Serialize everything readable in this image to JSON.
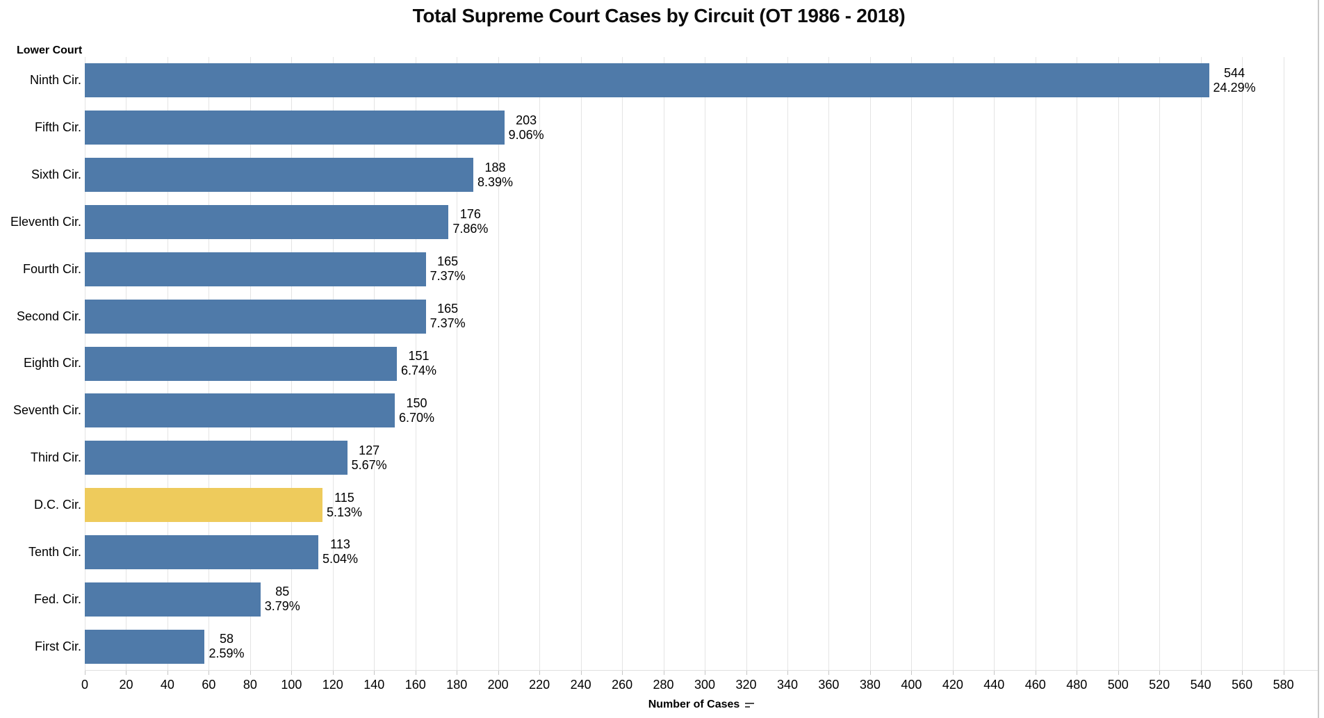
{
  "title": "Total Supreme Court Cases by Circuit (OT 1986 - 2018)",
  "row_header": "Lower Court",
  "axis": {
    "label": "Number of Cases",
    "min": 0,
    "max": 580,
    "tick_step": 20
  },
  "colors": {
    "bar": "#4f7aa9",
    "highlight": "#eecb5c",
    "gridline": "#e4e4e4",
    "axis_line": "#e0e0e0",
    "tick": "#c4c4c4",
    "border": "#c9c9c9",
    "text": "#000000"
  },
  "chart_data": {
    "type": "bar",
    "orientation": "horizontal",
    "title": "Total Supreme Court Cases by Circuit (OT 1986 - 2018)",
    "xlabel": "Number of Cases",
    "ylabel": "Lower Court",
    "xlim": [
      0,
      580
    ],
    "grid": true,
    "legend": false,
    "categories": [
      "Ninth Cir.",
      "Fifth Cir.",
      "Sixth Cir.",
      "Eleventh Cir.",
      "Fourth Cir.",
      "Second Cir.",
      "Eighth Cir.",
      "Seventh Cir.",
      "Third Cir.",
      "D.C. Cir.",
      "Tenth Cir.",
      "Fed. Cir.",
      "First Cir."
    ],
    "values": [
      544,
      203,
      188,
      176,
      165,
      165,
      151,
      150,
      127,
      115,
      113,
      85,
      58
    ],
    "percent_labels": [
      "24.29%",
      "9.06%",
      "8.39%",
      "7.86%",
      "7.37%",
      "7.37%",
      "6.74%",
      "6.70%",
      "5.67%",
      "5.13%",
      "5.04%",
      "3.79%",
      "2.59%"
    ],
    "highlighted_category": "D.C. Cir."
  }
}
